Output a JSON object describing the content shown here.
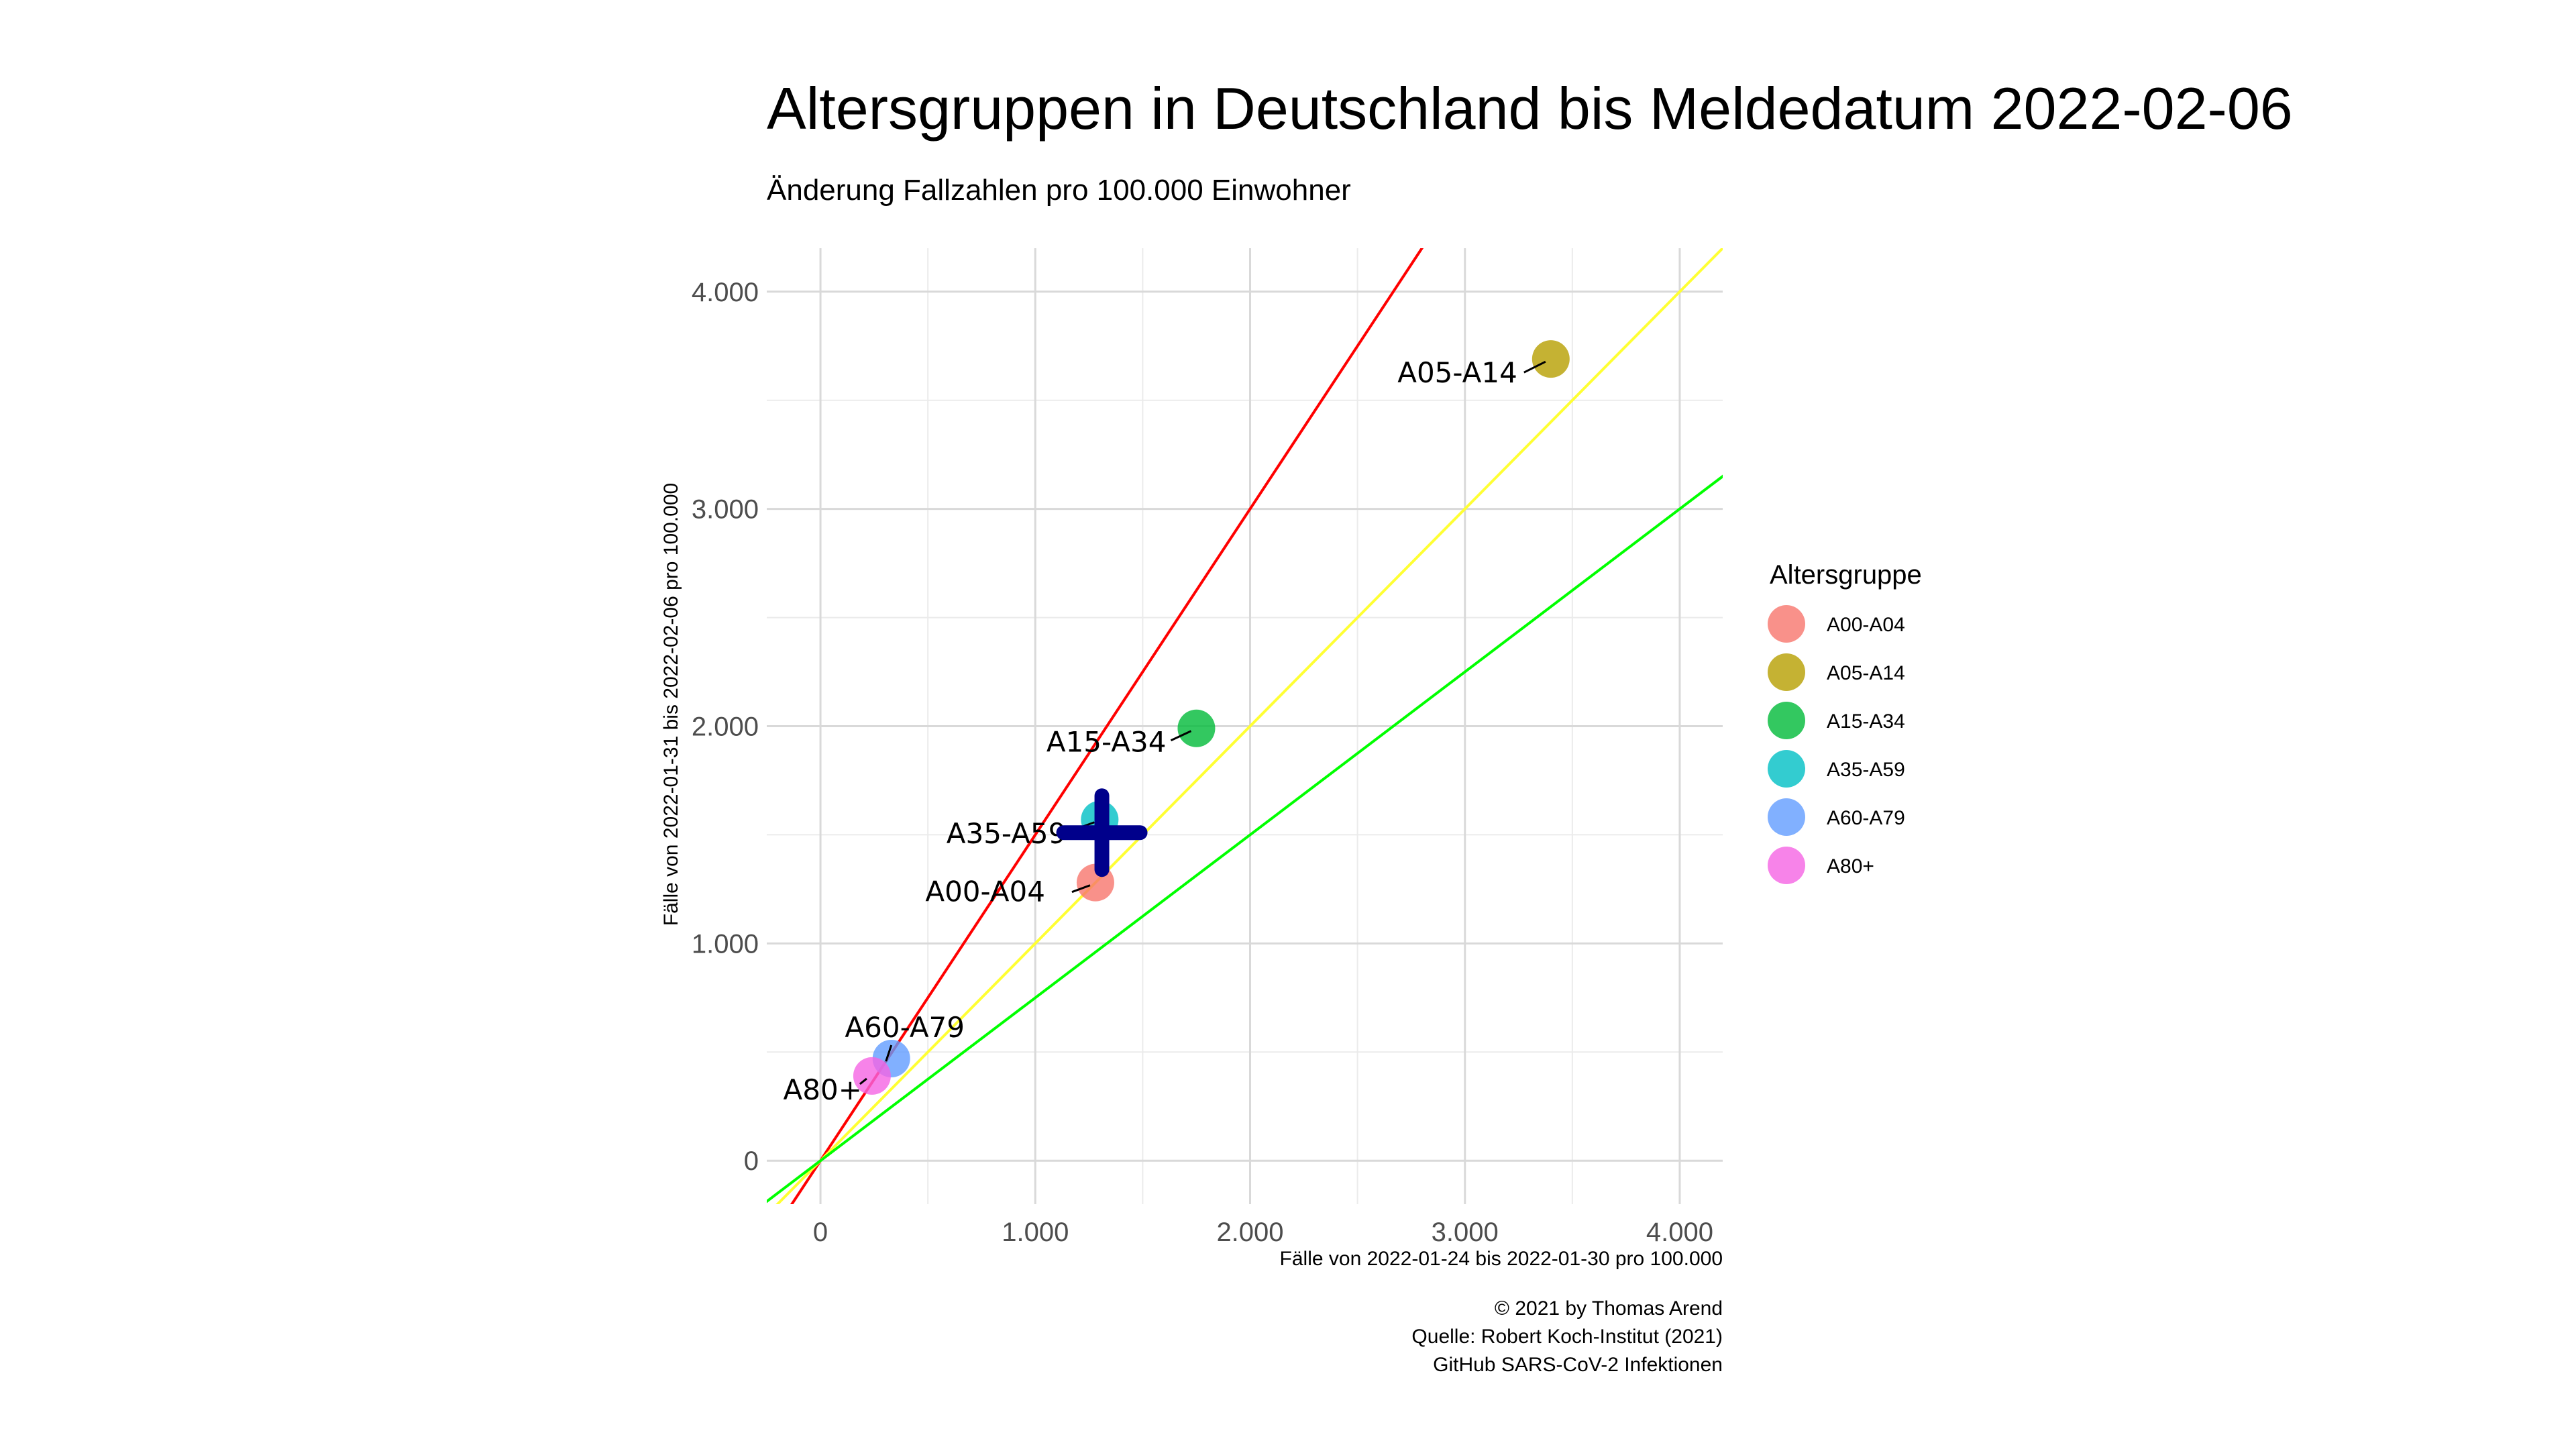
{
  "chart_data": {
    "type": "scatter",
    "title": "Altersgruppen in Deutschland bis Meldedatum 2022-02-06",
    "subtitle": "Änderung Fallzahlen pro 100.000 Einwohner",
    "xlabel": "Fälle von 2022-01-24 bis 2022-01-30 pro 100.000",
    "ylabel": "Fälle von 2022-01-31 bis 2022-02-06 pro 100.000",
    "xlim": [
      -250,
      4200
    ],
    "ylim": [
      -200,
      4200
    ],
    "x_ticks": [
      0,
      1000,
      2000,
      3000,
      4000
    ],
    "x_tick_labels": [
      "0",
      "1.000",
      "2.000",
      "3.000",
      "4.000"
    ],
    "y_ticks": [
      0,
      1000,
      2000,
      3000,
      4000
    ],
    "y_tick_labels": [
      "0",
      "1.000",
      "2.000",
      "3.000",
      "4.000"
    ],
    "grid": true,
    "legend_title": "Altersgruppe",
    "legend_position": "right",
    "reference_lines": [
      {
        "slope": 1.5,
        "color": "#ff0000"
      },
      {
        "slope": 1.0,
        "color": "#ffff33"
      },
      {
        "slope": 0.75,
        "color": "#00ff00"
      }
    ],
    "series": [
      {
        "name": "A00-A04",
        "x": 1280,
        "y": 1280,
        "color": "#f8766d"
      },
      {
        "name": "A05-A14",
        "x": 3400,
        "y": 3690,
        "color": "#b79f00"
      },
      {
        "name": "A15-A34",
        "x": 1750,
        "y": 1990,
        "color": "#00ba38"
      },
      {
        "name": "A35-A59",
        "x": 1300,
        "y": 1570,
        "color": "#00bfc4"
      },
      {
        "name": "A60-A79",
        "x": 330,
        "y": 470,
        "color": "#619cff"
      },
      {
        "name": "A80+",
        "x": 240,
        "y": 390,
        "color": "#f564e3"
      }
    ],
    "point_labels": [
      {
        "name": "A00-A04",
        "label": "A00-A04"
      },
      {
        "name": "A05-A14",
        "label": "A05-A14"
      },
      {
        "name": "A15-A34",
        "label": "A15-A34"
      },
      {
        "name": "A35-A59",
        "label": "A35-A59"
      },
      {
        "name": "A60-A79",
        "label": "A60-A79"
      },
      {
        "name": "A80+",
        "label": "A80+"
      }
    ],
    "mean_marker": {
      "x": 1310,
      "y": 1510,
      "color": "#00008b",
      "shape": "cross"
    }
  },
  "caption": {
    "line1": "© 2021 by Thomas Arend",
    "line2": "Quelle: Robert Koch-Institut (2021)",
    "line3": "GitHub SARS-CoV-2 Infektionen"
  }
}
